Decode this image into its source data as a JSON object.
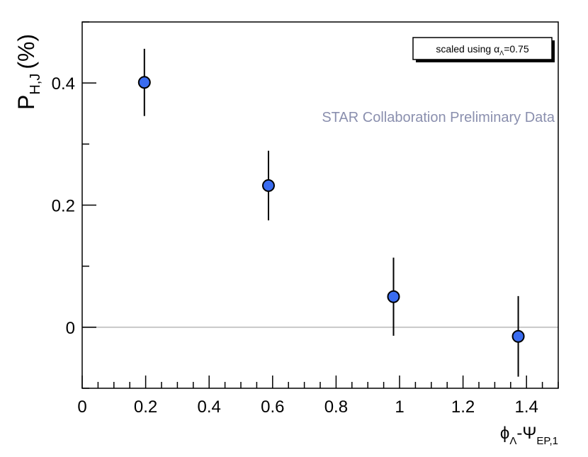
{
  "chart_data": {
    "type": "scatter",
    "x": [
      0.196,
      0.587,
      0.981,
      1.374
    ],
    "y": [
      0.401,
      0.232,
      0.05,
      -0.015
    ],
    "y_err": [
      0.055,
      0.057,
      0.064,
      0.066
    ],
    "xlim": [
      0,
      1.5
    ],
    "ylim": [
      -0.1,
      0.5
    ],
    "x_ticks": [
      0,
      0.2,
      0.4,
      0.6,
      0.8,
      1,
      1.2,
      1.4
    ],
    "x_tick_labels": [
      "0",
      "0.2",
      "0.4",
      "0.6",
      "0.8",
      "1",
      "1.2",
      "1.4"
    ],
    "y_ticks": [
      0,
      0.2,
      0.4
    ],
    "y_tick_labels": [
      "0",
      "0.2",
      "0.4"
    ],
    "xlabel": "ϕΛ-ΨEP,1",
    "ylabel": "PH,J (%)",
    "zero_line": true,
    "grid": false,
    "marker_color": "#3a6cf0",
    "annotation": "STAR Collaboration Preliminary Data",
    "annotation_color": "#8a8fae",
    "legend_box": "scaled using αΛ=0.75"
  },
  "labels": {
    "xlabel_main": "ϕ",
    "xlabel_sub1": "Λ",
    "xlabel_mid": "-Ψ",
    "xlabel_sub2": "EP,1",
    "ylabel_main": "P",
    "ylabel_sub": "H,J",
    "ylabel_unit": "(%)",
    "legend_prefix": "scaled using α",
    "legend_sub": "Λ",
    "legend_suffix": "=0.75"
  }
}
